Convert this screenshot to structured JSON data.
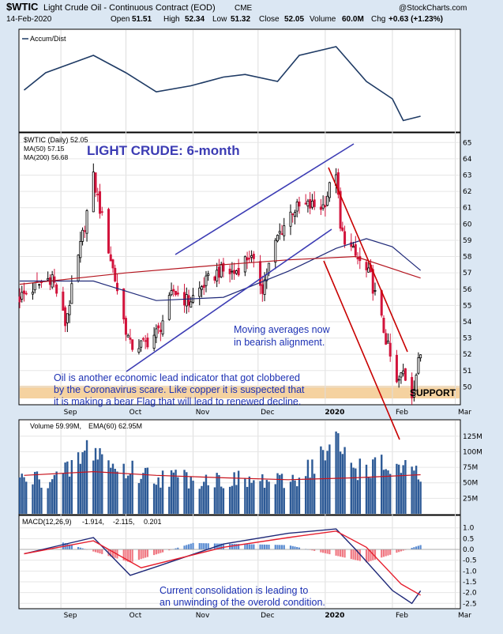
{
  "header": {
    "symbol": "$WTIC",
    "name": "Light Crude Oil - Continuous Contract (EOD)",
    "exchange": "CME",
    "watermark": "@StockCharts.com",
    "date": "14-Feb-2020",
    "open_label": "Open",
    "open": "51.51",
    "high_label": "High",
    "high": "52.34",
    "low_label": "Low",
    "low": "51.32",
    "close_label": "Close",
    "close": "52.05",
    "volume_label": "Volume",
    "volume": "60.0M",
    "chg_label": "Chg",
    "chg": "+0.63 (+1.23%)"
  },
  "panels": {
    "accum": {
      "legend": "Accum/Dist"
    },
    "price": {
      "legend_main": "$WTIC (Daily) 52.05",
      "legend_ma50": "MA(50) 57.15",
      "legend_ma200": "MA(200) 56.68",
      "title": "LIGHT CRUDE: 6-month"
    },
    "volume": {
      "legend_a": "Volume 59.99M,",
      "legend_b": "EMA(60) 62.95M"
    },
    "macd": {
      "legend_a": "MACD(12,26,9)",
      "legend_b": "-1.914,",
      "legend_c": "-2.115,",
      "legend_d": "0.201"
    }
  },
  "annotations": {
    "ma_note_1": "Moving averages now",
    "ma_note_2": "in bearish alignment.",
    "oil_note_1": "Oil is another economic lead indicator that got clobbered",
    "oil_note_2": "by the Coronavirus scare. Like copper it is suspected that",
    "oil_note_3": "it is making a bear Flag that will lead to renewed decline.",
    "support": "SUPPORT",
    "macd_note_1": "Current consolidation is leading to",
    "macd_note_2": "an unwinding of the overold condition."
  },
  "colors": {
    "up_candle": "#000000",
    "down_candle": "#d2143c",
    "ma50": "#1e2878",
    "ma200": "#b4141e",
    "trendline": "#3c3cb4",
    "bear_channel": "#c80000",
    "support_band": "#f5d2a0",
    "volume_bar": "#2d5a96",
    "macd_signal": "#e61e2d",
    "histogram_pos": "#5a8cd2",
    "histogram_neg": "#f07882"
  },
  "chart_data": [
    {
      "type": "line",
      "title": "Accum/Dist",
      "series": [
        {
          "name": "Accum/Dist",
          "points": [
            [
              "2019-08-15",
              0.6
            ],
            [
              "2019-08-25",
              0.4
            ],
            [
              "2019-09-05",
              0.3
            ],
            [
              "2019-09-16",
              0.2
            ],
            [
              "2019-10-01",
              0.4
            ],
            [
              "2019-10-15",
              0.62
            ],
            [
              "2019-10-31",
              0.55
            ],
            [
              "2019-11-15",
              0.45
            ],
            [
              "2019-11-25",
              0.42
            ],
            [
              "2019-12-10",
              0.5
            ],
            [
              "2019-12-20",
              0.2
            ],
            [
              "2020-01-06",
              0.1
            ],
            [
              "2020-01-20",
              0.5
            ],
            [
              "2020-02-01",
              0.7
            ],
            [
              "2020-02-06",
              0.95
            ],
            [
              "2020-02-14",
              0.9
            ]
          ]
        }
      ]
    },
    {
      "type": "candlestick",
      "title": "LIGHT CRUDE: 6-month",
      "ylim": [
        49,
        65.5
      ],
      "y_ticks": [
        50,
        51,
        52,
        53,
        54,
        55,
        56,
        57,
        58,
        59,
        60,
        61,
        62,
        63,
        64,
        65
      ],
      "x_ticks": [
        "Sep",
        "Oct",
        "Nov",
        "Dec",
        "2020",
        "Feb",
        "Mar"
      ],
      "series": [
        {
          "name": "$WTIC (Daily) 52.05",
          "points": [
            [
              "2019-08-13",
              55.5
            ],
            [
              "2019-08-21",
              56.2
            ],
            [
              "2019-08-28",
              56.8
            ],
            [
              "2019-09-03",
              53.9
            ],
            [
              "2019-09-09",
              57.9
            ],
            [
              "2019-09-16",
              62.8
            ],
            [
              "2019-09-23",
              58.5
            ],
            [
              "2019-09-30",
              54.1
            ],
            [
              "2019-10-03",
              52.5
            ],
            [
              "2019-10-09",
              52.6
            ],
            [
              "2019-10-16",
              53.4
            ],
            [
              "2019-10-23",
              55.9
            ],
            [
              "2019-10-30",
              55.2
            ],
            [
              "2019-11-06",
              56.3
            ],
            [
              "2019-11-13",
              57.1
            ],
            [
              "2019-11-20",
              57.0
            ],
            [
              "2019-11-27",
              58.1
            ],
            [
              "2019-12-03",
              56.1
            ],
            [
              "2019-12-10",
              59.2
            ],
            [
              "2019-12-17",
              60.9
            ],
            [
              "2019-12-24",
              61.1
            ],
            [
              "2019-12-31",
              61.1
            ],
            [
              "2020-01-06",
              63.3
            ],
            [
              "2020-01-08",
              59.6
            ],
            [
              "2020-01-15",
              58.0
            ],
            [
              "2020-01-22",
              56.7
            ],
            [
              "2020-01-28",
              53.5
            ],
            [
              "2020-02-03",
              50.1
            ],
            [
              "2020-02-06",
              50.9
            ],
            [
              "2020-02-10",
              49.6
            ],
            [
              "2020-02-14",
              52.05
            ]
          ]
        },
        {
          "name": "MA(50) 57.15",
          "points": [
            [
              "2019-08-13",
              56.5
            ],
            [
              "2019-09-16",
              56.5
            ],
            [
              "2019-10-15",
              55.3
            ],
            [
              "2019-11-15",
              55.5
            ],
            [
              "2019-12-15",
              57.1
            ],
            [
              "2020-01-06",
              58.5
            ],
            [
              "2020-01-20",
              59.1
            ],
            [
              "2020-02-01",
              58.6
            ],
            [
              "2020-02-14",
              57.15
            ]
          ]
        },
        {
          "name": "MA(200) 56.68",
          "points": [
            [
              "2019-08-13",
              56.3
            ],
            [
              "2019-10-01",
              57.0
            ],
            [
              "2019-11-15",
              57.5
            ],
            [
              "2019-12-15",
              57.8
            ],
            [
              "2020-01-15",
              58.0
            ],
            [
              "2020-02-14",
              56.68
            ]
          ]
        }
      ]
    },
    {
      "type": "bar",
      "title": "Volume",
      "y_ticks": [
        "25M",
        "50M",
        "75M",
        "100M",
        "125M"
      ],
      "series": [
        {
          "name": "Volume 59.99M",
          "points": [
            [
              "2019-08-15",
              55
            ],
            [
              "2019-09-01",
              58
            ],
            [
              "2019-09-16",
              110
            ],
            [
              "2019-09-25",
              75
            ],
            [
              "2019-10-15",
              60
            ],
            [
              "2019-11-15",
              55
            ],
            [
              "2019-12-15",
              50
            ],
            [
              "2020-01-06",
              110
            ],
            [
              "2020-01-15",
              75
            ],
            [
              "2020-02-01",
              75
            ],
            [
              "2020-02-14",
              59.99
            ]
          ]
        },
        {
          "name": "EMA(60) 62.95M",
          "points": [
            [
              "2019-08-15",
              62
            ],
            [
              "2019-09-16",
              68
            ],
            [
              "2019-10-15",
              62
            ],
            [
              "2019-11-15",
              58
            ],
            [
              "2019-12-15",
              55
            ],
            [
              "2020-01-15",
              58
            ],
            [
              "2020-02-14",
              62.95
            ]
          ]
        }
      ]
    },
    {
      "type": "line",
      "title": "MACD(12,26,9)",
      "ylim": [
        -2.5,
        1.0
      ],
      "y_ticks": [
        1.0,
        0.5,
        0.0,
        -0.5,
        -1.0,
        -1.5,
        -2.0,
        -2.5
      ],
      "series": [
        {
          "name": "MACD -1.914",
          "points": [
            [
              "2019-08-15",
              -0.2
            ],
            [
              "2019-09-16",
              0.55
            ],
            [
              "2019-10-03",
              -1.2
            ],
            [
              "2019-10-15",
              -0.8
            ],
            [
              "2019-11-15",
              0.25
            ],
            [
              "2019-12-15",
              0.75
            ],
            [
              "2020-01-06",
              0.95
            ],
            [
              "2020-01-15",
              0.0
            ],
            [
              "2020-02-01",
              -1.9
            ],
            [
              "2020-02-10",
              -2.5
            ],
            [
              "2020-02-14",
              -1.914
            ]
          ]
        },
        {
          "name": "Signal -2.115",
          "points": [
            [
              "2019-08-15",
              -0.2
            ],
            [
              "2019-09-16",
              0.4
            ],
            [
              "2019-10-08",
              -0.85
            ],
            [
              "2019-11-15",
              0.1
            ],
            [
              "2019-12-15",
              0.55
            ],
            [
              "2020-01-06",
              0.85
            ],
            [
              "2020-01-20",
              0.1
            ],
            [
              "2020-02-05",
              -1.6
            ],
            [
              "2020-02-14",
              -2.115
            ]
          ]
        },
        {
          "name": "Histogram 0.201",
          "points": [
            [
              "2019-09-01",
              0.35
            ],
            [
              "2019-10-03",
              -0.6
            ],
            [
              "2019-11-01",
              0.3
            ],
            [
              "2019-12-15",
              0.2
            ],
            [
              "2020-01-20",
              -0.6
            ],
            [
              "2020-02-14",
              0.201
            ]
          ]
        }
      ]
    }
  ]
}
